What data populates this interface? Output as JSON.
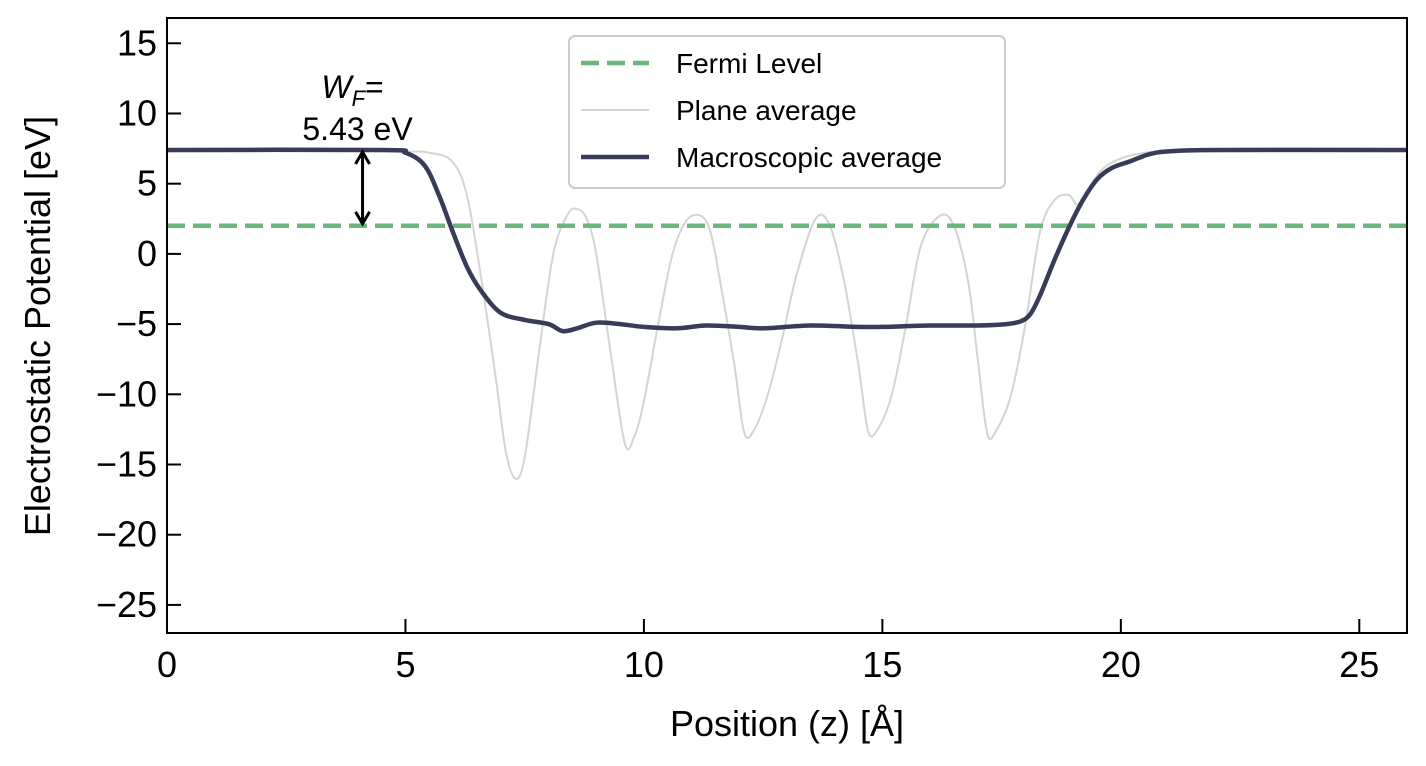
{
  "chart_data": {
    "type": "line",
    "xlabel": "Position (z) [Å]",
    "ylabel": "Electrostatic Potential [eV]",
    "xlim": [
      0,
      26
    ],
    "ylim": [
      -27,
      16.8
    ],
    "xticks": [
      0,
      5,
      10,
      15,
      20,
      25
    ],
    "yticks": [
      -25,
      -20,
      -15,
      -10,
      -5,
      0,
      5,
      10,
      15
    ],
    "xtick_labels": [
      "0",
      "5",
      "10",
      "15",
      "20",
      "25"
    ],
    "ytick_labels": [
      "−25",
      "−20",
      "−15",
      "−10",
      "−5",
      "0",
      "5",
      "10",
      "15"
    ],
    "ticks_direction": "in",
    "grid": false,
    "legend_position": "upper center",
    "series": [
      {
        "name": "Fermi Level",
        "style": "dashed",
        "color": "#6db57e",
        "x": [
          0,
          26
        ],
        "y": [
          2.0,
          2.0
        ]
      },
      {
        "name": "Plane average",
        "style": "solid",
        "color": "#d4d4d4",
        "x": [
          0,
          4.5,
          5.5,
          6.0,
          6.3,
          6.6,
          6.9,
          7.1,
          7.3,
          7.5,
          7.8,
          8.1,
          8.4,
          8.6,
          8.8,
          9.0,
          9.3,
          9.6,
          9.8,
          10.0,
          10.3,
          10.6,
          10.9,
          11.2,
          11.4,
          11.6,
          11.9,
          12.1,
          12.3,
          12.6,
          12.9,
          13.2,
          13.6,
          13.9,
          14.2,
          14.5,
          14.7,
          14.9,
          15.2,
          15.5,
          15.8,
          16.2,
          16.5,
          16.8,
          17.0,
          17.2,
          17.4,
          17.7,
          18.0,
          18.3,
          18.6,
          18.9,
          19.1,
          19.3,
          19.6,
          20.0,
          20.5,
          21.0,
          22.0,
          26.0
        ],
        "y": [
          7.3,
          7.3,
          7.2,
          6.5,
          4.0,
          -2.0,
          -9.0,
          -14.0,
          -16.0,
          -14.5,
          -7.0,
          0.0,
          2.8,
          3.2,
          2.5,
          0.0,
          -7.0,
          -13.5,
          -13.0,
          -10.5,
          -5.0,
          0.0,
          2.4,
          2.7,
          1.5,
          -2.0,
          -8.0,
          -12.7,
          -12.6,
          -10.0,
          -6.0,
          -1.5,
          2.5,
          2.0,
          -2.0,
          -8.0,
          -12.6,
          -12.5,
          -10.0,
          -5.0,
          0.5,
          2.7,
          2.0,
          -2.0,
          -7.5,
          -12.8,
          -12.5,
          -10.0,
          -5.0,
          1.5,
          3.8,
          4.2,
          3.5,
          4.5,
          6.0,
          6.8,
          7.2,
          7.3,
          7.3,
          7.3
        ]
      },
      {
        "name": "Macroscopic average",
        "style": "solid",
        "color": "#393c58",
        "x": [
          0,
          4.5,
          5.0,
          5.4,
          5.7,
          6.0,
          6.3,
          6.6,
          7.0,
          7.5,
          8.0,
          8.3,
          8.6,
          9.0,
          9.5,
          10.0,
          10.7,
          11.3,
          12.0,
          12.5,
          13.5,
          14.5,
          15.0,
          16.0,
          17.0,
          17.6,
          17.9,
          18.1,
          18.3,
          18.6,
          18.9,
          19.2,
          19.5,
          19.8,
          20.2,
          20.6,
          21.0,
          22.0,
          26.0
        ],
        "y": [
          7.4,
          7.4,
          7.2,
          6.3,
          4.2,
          1.5,
          -1.0,
          -2.7,
          -4.2,
          -4.7,
          -5.0,
          -5.5,
          -5.3,
          -4.9,
          -5.0,
          -5.2,
          -5.3,
          -5.1,
          -5.2,
          -5.3,
          -5.1,
          -5.2,
          -5.2,
          -5.1,
          -5.1,
          -5.0,
          -4.8,
          -4.3,
          -3.0,
          -0.5,
          1.8,
          3.8,
          5.3,
          6.1,
          6.6,
          7.1,
          7.3,
          7.4,
          7.4
        ]
      }
    ],
    "annotations": [
      {
        "text_symbol": "W",
        "text_subscript": "F",
        "text_suffix": "=",
        "text_value": "5.43 eV",
        "x": 4.1,
        "y_from": 7.4,
        "y_to": 2.0,
        "arrow": "double",
        "arrow_color": "#000000"
      }
    ]
  }
}
